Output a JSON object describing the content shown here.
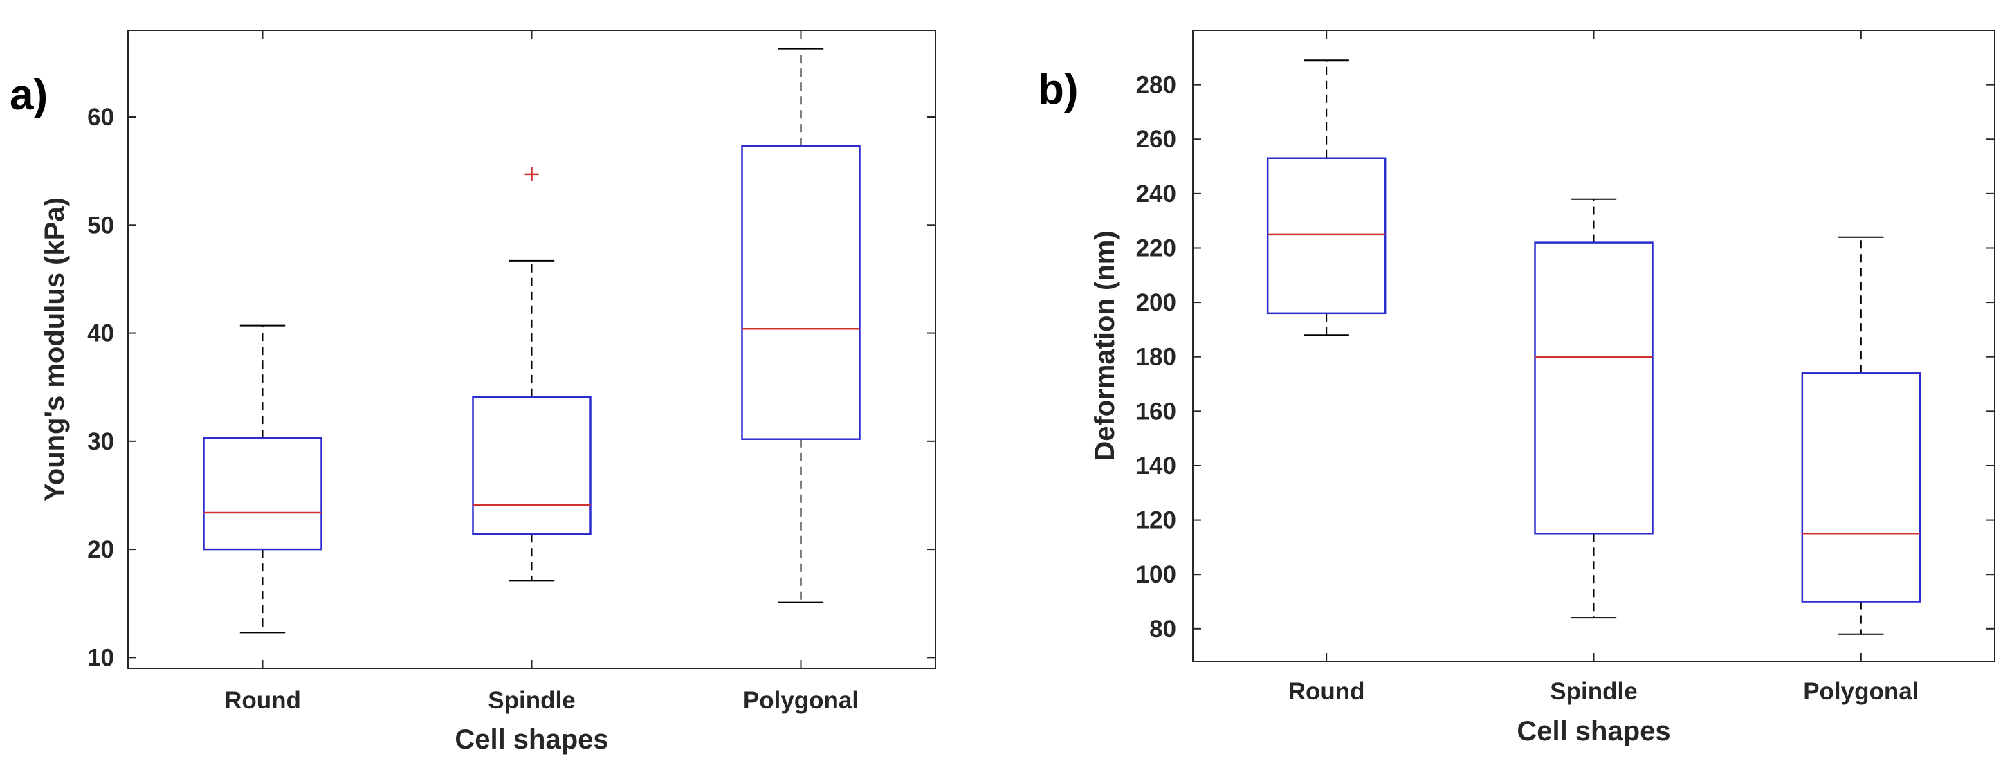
{
  "chart_data": [
    {
      "type": "box",
      "panel_label": "a)",
      "xlabel": "Cell shapes",
      "ylabel": "Young's modulus (kPa)",
      "ylim": [
        9,
        68
      ],
      "yticks": [
        10,
        20,
        30,
        40,
        50,
        60
      ],
      "grid": false,
      "categories": [
        "Round",
        "Spindle",
        "Polygonal"
      ],
      "boxes": [
        {
          "category": "Round",
          "whisker_low": 12.3,
          "q1": 20.0,
          "median": 23.4,
          "q3": 30.3,
          "whisker_high": 40.7,
          "outliers": []
        },
        {
          "category": "Spindle",
          "whisker_low": 17.1,
          "q1": 21.4,
          "median": 24.1,
          "q3": 34.1,
          "whisker_high": 46.7,
          "outliers": [
            54.7
          ]
        },
        {
          "category": "Polygonal",
          "whisker_low": 15.1,
          "q1": 30.2,
          "median": 40.4,
          "q3": 57.3,
          "whisker_high": 66.3,
          "outliers": []
        }
      ]
    },
    {
      "type": "box",
      "panel_label": "b)",
      "xlabel": "Cell shapes",
      "ylabel": "Deformation (nm)",
      "ylim": [
        68,
        300
      ],
      "yticks": [
        80,
        100,
        120,
        140,
        160,
        180,
        200,
        220,
        240,
        260,
        280
      ],
      "grid": false,
      "categories": [
        "Round",
        "Spindle",
        "Polygonal"
      ],
      "boxes": [
        {
          "category": "Round",
          "whisker_low": 188,
          "q1": 196,
          "median": 225,
          "q3": 253,
          "whisker_high": 289,
          "outliers": []
        },
        {
          "category": "Spindle",
          "whisker_low": 84,
          "q1": 115,
          "median": 180,
          "q3": 222,
          "whisker_high": 238,
          "outliers": []
        },
        {
          "category": "Polygonal",
          "whisker_low": 78,
          "q1": 90,
          "median": 115,
          "q3": 174,
          "whisker_high": 224,
          "outliers": []
        }
      ]
    }
  ],
  "colors": {
    "box": "#2b2bd0",
    "median": "#d03030",
    "whisker": "#000000",
    "outlier": "#d03030",
    "axis": "#262626"
  }
}
